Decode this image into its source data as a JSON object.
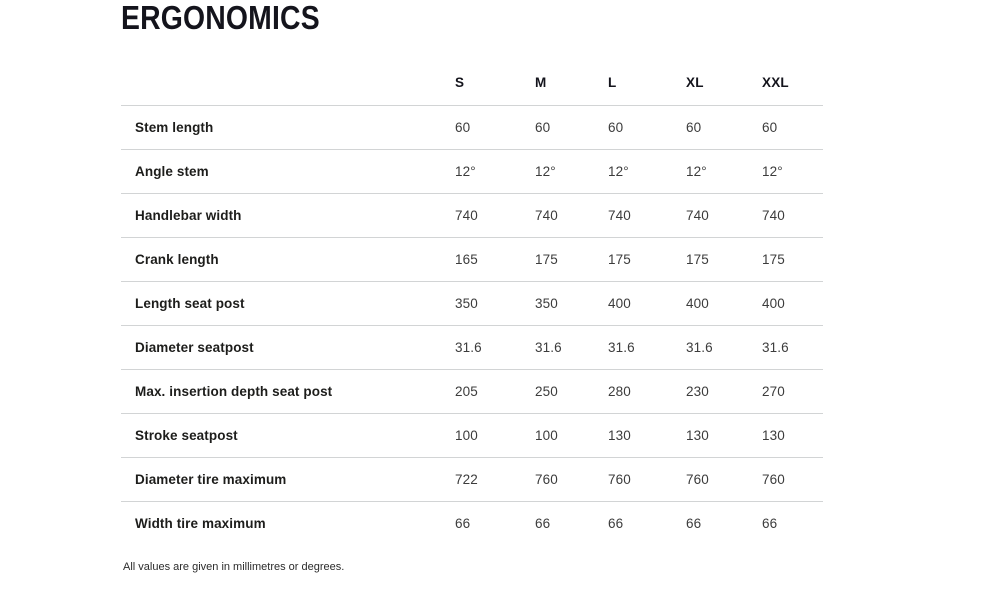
{
  "section": {
    "title": "ERGONOMICS",
    "footnote": "All values are given in millimetres or degrees."
  },
  "chart_data": {
    "type": "table",
    "title": "ERGONOMICS",
    "columns": [
      "",
      "S",
      "M",
      "L",
      "XL",
      "XXL"
    ],
    "rows": [
      {
        "label": "Stem length",
        "values": [
          "60",
          "60",
          "60",
          "60",
          "60"
        ]
      },
      {
        "label": "Angle stem",
        "values": [
          "12°",
          "12°",
          "12°",
          "12°",
          "12°"
        ]
      },
      {
        "label": "Handlebar width",
        "values": [
          "740",
          "740",
          "740",
          "740",
          "740"
        ]
      },
      {
        "label": "Crank length",
        "values": [
          "165",
          "175",
          "175",
          "175",
          "175"
        ]
      },
      {
        "label": "Length seat post",
        "values": [
          "350",
          "350",
          "400",
          "400",
          "400"
        ]
      },
      {
        "label": "Diameter seatpost",
        "values": [
          "31.6",
          "31.6",
          "31.6",
          "31.6",
          "31.6"
        ]
      },
      {
        "label": "Max. insertion depth seat post",
        "values": [
          "205",
          "250",
          "280",
          "230",
          "270"
        ]
      },
      {
        "label": "Stroke seatpost",
        "values": [
          "100",
          "100",
          "130",
          "130",
          "130"
        ]
      },
      {
        "label": "Diameter tire maximum",
        "values": [
          "722",
          "760",
          "760",
          "760",
          "760"
        ]
      },
      {
        "label": "Width tire maximum",
        "values": [
          "66",
          "66",
          "66",
          "66",
          "66"
        ]
      }
    ],
    "notes": "All values are given in millimetres or degrees.",
    "layout": {
      "grid": "horizontal row separators only",
      "value_alignment": "left",
      "text_color": "#1d1d1b",
      "separator_color": "#d2d4d5"
    }
  }
}
